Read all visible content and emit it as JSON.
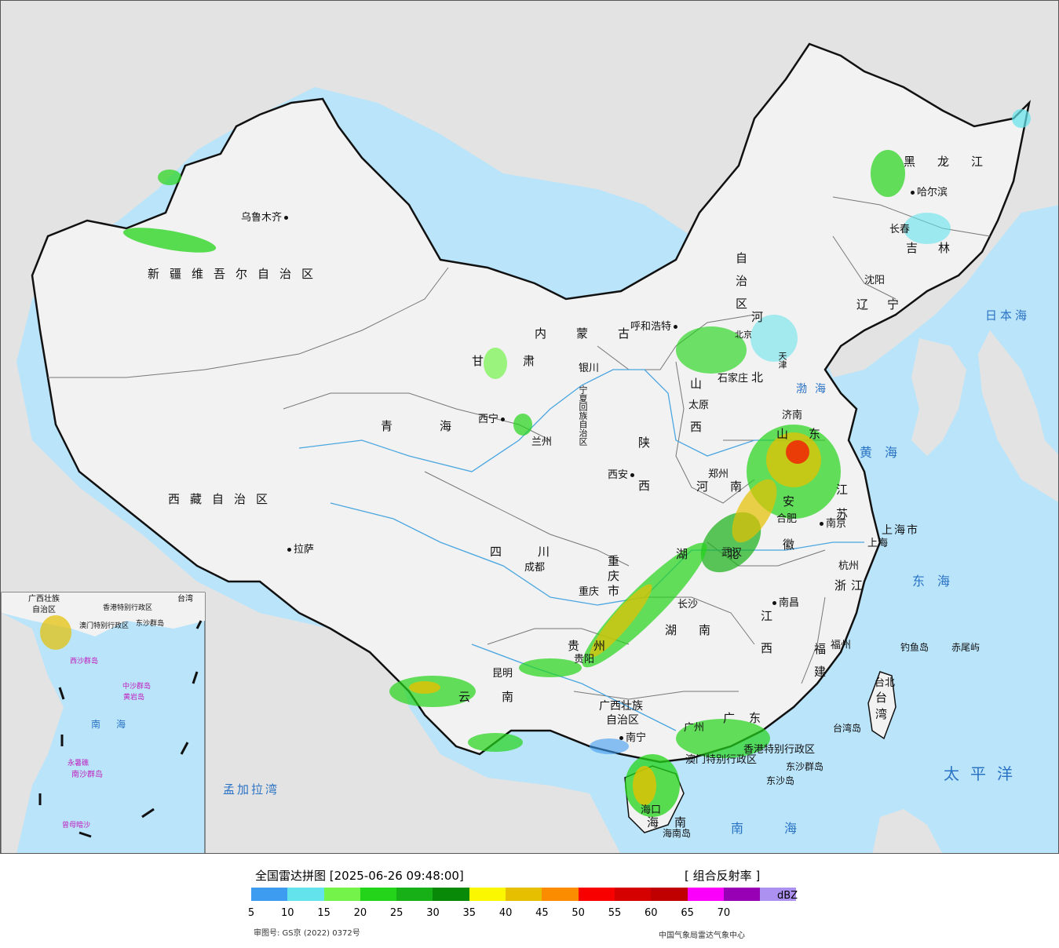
{
  "map": {
    "main_labels": {
      "provinces": [
        {
          "id": "xinjiang",
          "text": "新疆维吾尔自治区"
        },
        {
          "id": "xizang",
          "text": "西藏自治区"
        },
        {
          "id": "qinghai",
          "text": "青海"
        },
        {
          "id": "neimenggu-1",
          "text": "内蒙古"
        },
        {
          "id": "neimenggu-2",
          "text": "自治区"
        },
        {
          "id": "heilongjiang",
          "text": "黑龙江"
        },
        {
          "id": "jilin",
          "text": "吉林"
        },
        {
          "id": "liaoning",
          "text": "辽宁"
        },
        {
          "id": "hebei",
          "text": "河北"
        },
        {
          "id": "shanxi",
          "text": "山西"
        },
        {
          "id": "shaanxi",
          "text": "陕西"
        },
        {
          "id": "gansu",
          "text": "甘肃"
        },
        {
          "id": "ningxia",
          "text": "宁夏回族自治区"
        },
        {
          "id": "henan",
          "text": "河南"
        },
        {
          "id": "shandong",
          "text": "山东"
        },
        {
          "id": "jiangsu",
          "text": "江苏"
        },
        {
          "id": "anhui",
          "text": "安徽"
        },
        {
          "id": "hubei",
          "text": "湖北"
        },
        {
          "id": "sichuan",
          "text": "四川"
        },
        {
          "id": "chongqing",
          "text": "重庆市"
        },
        {
          "id": "hunan",
          "text": "湖南"
        },
        {
          "id": "jiangxi",
          "text": "江西"
        },
        {
          "id": "zhejiang",
          "text": "浙江"
        },
        {
          "id": "fujian",
          "text": "福建"
        },
        {
          "id": "guizhou",
          "text": "贵州"
        },
        {
          "id": "yunnan",
          "text": "云南"
        },
        {
          "id": "guangxi-1",
          "text": "广西壮族"
        },
        {
          "id": "guangxi-2",
          "text": "自治区"
        },
        {
          "id": "guangdong",
          "text": "广东"
        },
        {
          "id": "hainan",
          "text": "海南"
        },
        {
          "id": "taiwan",
          "text": "台湾"
        },
        {
          "id": "shanghai",
          "text": "上海市"
        },
        {
          "id": "beijing",
          "text": "北京"
        },
        {
          "id": "tianjin",
          "text": "天津"
        }
      ],
      "cities": [
        {
          "id": "urumqi",
          "text": "乌鲁木齐"
        },
        {
          "id": "lhasa",
          "text": "拉萨"
        },
        {
          "id": "xining",
          "text": "西宁"
        },
        {
          "id": "lanzhou",
          "text": "兰州"
        },
        {
          "id": "yinchuan",
          "text": "银川"
        },
        {
          "id": "hohhot",
          "text": "呼和浩特"
        },
        {
          "id": "harbin",
          "text": "哈尔滨"
        },
        {
          "id": "changchun",
          "text": "长春"
        },
        {
          "id": "shenyang",
          "text": "沈阳"
        },
        {
          "id": "shijiazhuang",
          "text": "石家庄"
        },
        {
          "id": "taiyuan",
          "text": "太原"
        },
        {
          "id": "jinan",
          "text": "济南"
        },
        {
          "id": "zhengzhou",
          "text": "郑州"
        },
        {
          "id": "xian",
          "text": "西安"
        },
        {
          "id": "hefei",
          "text": "合肥"
        },
        {
          "id": "nanjing",
          "text": "南京"
        },
        {
          "id": "shanghai-city",
          "text": "上海"
        },
        {
          "id": "hangzhou",
          "text": "杭州"
        },
        {
          "id": "wuhan",
          "text": "武汉"
        },
        {
          "id": "chengdu",
          "text": "成都"
        },
        {
          "id": "chongqing-city",
          "text": "重庆"
        },
        {
          "id": "changsha",
          "text": "长沙"
        },
        {
          "id": "nanchang",
          "text": "南昌"
        },
        {
          "id": "fuzhou",
          "text": "福州"
        },
        {
          "id": "guiyang",
          "text": "贵阳"
        },
        {
          "id": "kunming",
          "text": "昆明"
        },
        {
          "id": "nanning",
          "text": "南宁"
        },
        {
          "id": "guangzhou",
          "text": "广州"
        },
        {
          "id": "haikou",
          "text": "海口"
        },
        {
          "id": "taipei",
          "text": "台北"
        },
        {
          "id": "hongkong",
          "text": "香港特别行政区"
        },
        {
          "id": "macao",
          "text": "澳门特别行政区"
        }
      ],
      "islands": [
        {
          "id": "diaoyu",
          "text": "钓鱼岛"
        },
        {
          "id": "chiwei",
          "text": "赤尾屿"
        },
        {
          "id": "dongsha-1",
          "text": "东沙群岛"
        },
        {
          "id": "dongsha-2",
          "text": "东沙岛"
        },
        {
          "id": "taiwan-island",
          "text": "台湾岛"
        },
        {
          "id": "hainan-island",
          "text": "海南岛"
        }
      ],
      "seas": [
        {
          "id": "japan-sea",
          "text": "日本海"
        },
        {
          "id": "bohai",
          "text": "渤海"
        },
        {
          "id": "yellow-sea",
          "text": "黄海"
        },
        {
          "id": "east-sea",
          "text": "东海"
        },
        {
          "id": "pacific",
          "text": "太平洋"
        },
        {
          "id": "south-sea",
          "text": "南海"
        },
        {
          "id": "bengal",
          "text": "孟加拉湾"
        }
      ]
    },
    "inset_labels": [
      {
        "id": "inset-guangxi",
        "text": "广西壮族"
      },
      {
        "id": "inset-zizhiqu",
        "text": "自治区"
      },
      {
        "id": "inset-macao",
        "text": "澳门特别行政区"
      },
      {
        "id": "inset-hk",
        "text": "香港特别行政区"
      },
      {
        "id": "inset-dongsha",
        "text": "东沙群岛"
      },
      {
        "id": "inset-taiwan",
        "text": "台湾"
      },
      {
        "id": "inset-xisha",
        "text": "西沙群岛"
      },
      {
        "id": "inset-zhongsha",
        "text": "中沙群岛"
      },
      {
        "id": "inset-huangyan",
        "text": "黄岩岛"
      },
      {
        "id": "inset-nanhai",
        "text": "南海"
      },
      {
        "id": "inset-nansha",
        "text": "南沙群岛"
      },
      {
        "id": "inset-yongshu",
        "text": "永暑礁"
      },
      {
        "id": "inset-zengmu",
        "text": "曾母暗沙"
      }
    ],
    "colors": {
      "sea": "#b9e4fa",
      "land": "#f2f2f2",
      "foreign_land": "#e3e3e3",
      "border": "#111111",
      "river": "#4aa6e0"
    }
  },
  "legend": {
    "title": "全国雷达拼图 [2025-06-26 09:48:00]",
    "product": "[ 组合反射率 ]",
    "unit": "dBZ",
    "ticks": [
      "5",
      "10",
      "15",
      "20",
      "25",
      "30",
      "35",
      "40",
      "45",
      "50",
      "55",
      "60",
      "65",
      "70"
    ],
    "colors": [
      "#3d9bf0",
      "#63e4ed",
      "#74f34a",
      "#23d41a",
      "#17b117",
      "#088a08",
      "#fbf700",
      "#e6c000",
      "#fb8c00",
      "#f90000",
      "#d50000",
      "#c00000",
      "#fb00fb",
      "#9800b5",
      "#ad91f0"
    ],
    "review_number": "审图号: GS京 (2022) 0372号",
    "source": "中国气象局雷达气象中心"
  }
}
